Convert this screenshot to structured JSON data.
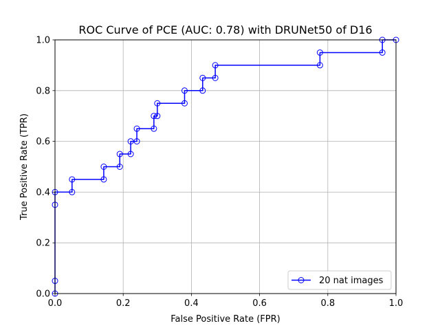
{
  "chart_data": {
    "type": "line",
    "title": "ROC Curve of PCE (AUC: 0.78) with DRUNet50 of D16",
    "xlabel": "False Positive Rate (FPR)",
    "ylabel": "True Positive Rate (TPR)",
    "xlim": [
      0.0,
      1.0
    ],
    "ylim": [
      0.0,
      1.0
    ],
    "xticks": [
      "0.0",
      "0.2",
      "0.4",
      "0.6",
      "0.8",
      "1.0"
    ],
    "yticks": [
      "0.0",
      "0.2",
      "0.4",
      "0.6",
      "0.8",
      "1.0"
    ],
    "grid": true,
    "legend_position": "bottom-right",
    "series": [
      {
        "name": "20 nat images",
        "color": "#0000ff",
        "marker": "open-circle",
        "x": [
          0.0,
          0.0,
          0.0,
          0.0,
          0.05,
          0.05,
          0.143,
          0.143,
          0.19,
          0.19,
          0.222,
          0.222,
          0.24,
          0.24,
          0.29,
          0.29,
          0.3,
          0.3,
          0.38,
          0.38,
          0.433,
          0.433,
          0.47,
          0.47,
          0.777,
          0.777,
          0.96,
          0.96,
          1.0
        ],
        "y": [
          0.0,
          0.05,
          0.35,
          0.4,
          0.4,
          0.45,
          0.45,
          0.5,
          0.5,
          0.55,
          0.55,
          0.6,
          0.6,
          0.65,
          0.65,
          0.7,
          0.7,
          0.75,
          0.75,
          0.8,
          0.8,
          0.85,
          0.85,
          0.9,
          0.9,
          0.95,
          0.95,
          1.0,
          1.0
        ]
      }
    ]
  }
}
